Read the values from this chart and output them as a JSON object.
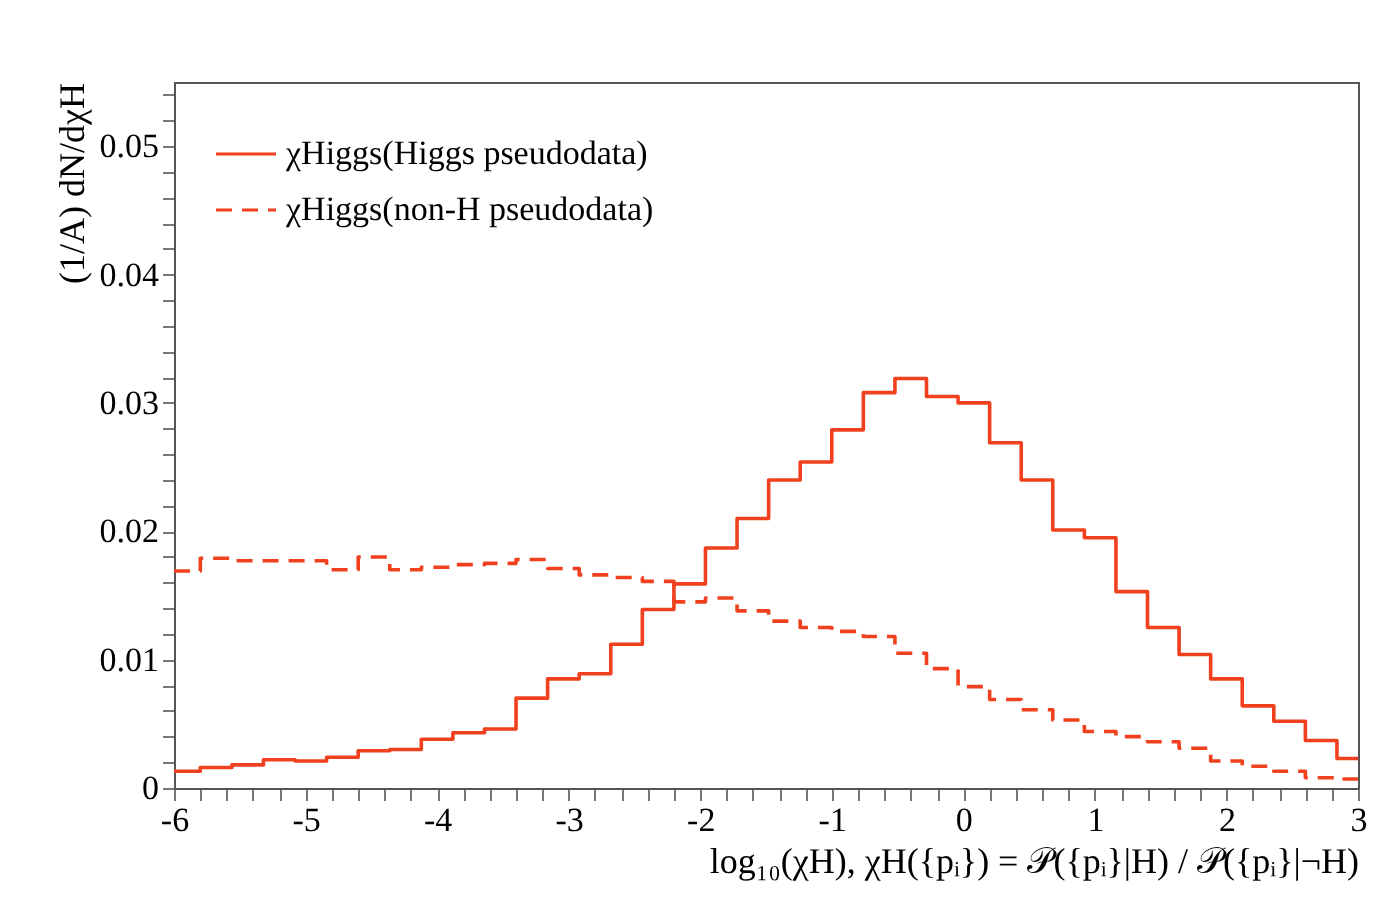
{
  "chart_data": {
    "type": "step",
    "xlabel": "log₁₀(χH),  χH({pᵢ}) = 𝒫({pᵢ}|H) / 𝒫({pᵢ}|¬H)",
    "ylabel": "(1/A) dN/dχH",
    "x": [
      -6,
      -5.8,
      -5.56,
      -5.32,
      -5.08,
      -4.84,
      -4.6,
      -4.36,
      -4.12,
      -3.88,
      -3.64,
      -3.4,
      -3.16,
      -2.92,
      -2.68,
      -2.44,
      -2.2,
      -1.96,
      -1.72,
      -1.48,
      -1.24,
      -1.0,
      -0.76,
      -0.52,
      -0.28,
      -0.04,
      0.2,
      0.44,
      0.68,
      0.92,
      1.16,
      1.4,
      1.64,
      1.88,
      2.12,
      2.36,
      2.6,
      2.84,
      3
    ],
    "series": [
      {
        "name": "χHiggs(Higgs pseudodata)",
        "color": "#f0401e",
        "line_style": "solid",
        "values": [
          0.0013,
          0.0016,
          0.0018,
          0.0022,
          0.0021,
          0.0024,
          0.0029,
          0.003,
          0.0038,
          0.0043,
          0.0046,
          0.007,
          0.0085,
          0.0089,
          0.0112,
          0.0139,
          0.0159,
          0.0187,
          0.021,
          0.024,
          0.0254,
          0.0279,
          0.0308,
          0.0319,
          0.0305,
          0.03,
          0.0269,
          0.024,
          0.0201,
          0.0195,
          0.0153,
          0.0125,
          0.0104,
          0.0085,
          0.0064,
          0.0052,
          0.0037,
          0.0023,
          0.0023
        ]
      },
      {
        "name": "χHiggs(non-H pseudodata)",
        "color": "#f0401e",
        "line_style": "dashed",
        "values": [
          0.0169,
          0.0179,
          0.0177,
          0.0177,
          0.0177,
          0.017,
          0.018,
          0.017,
          0.0172,
          0.0174,
          0.0175,
          0.0178,
          0.0171,
          0.0166,
          0.0164,
          0.0161,
          0.0145,
          0.0148,
          0.0138,
          0.013,
          0.0125,
          0.0122,
          0.0118,
          0.0105,
          0.0093,
          0.0079,
          0.0069,
          0.0061,
          0.0053,
          0.0044,
          0.004,
          0.0036,
          0.0031,
          0.0021,
          0.0017,
          0.0013,
          0.0008,
          0.0007,
          0.0007
        ]
      }
    ],
    "xlim": [
      -6,
      3
    ],
    "xticks": [
      -6,
      {
        "value": -5.8,
        "label": null
      },
      {
        "value": -5.6,
        "label": null
      },
      {
        "value": -5.4,
        "label": null
      },
      {
        "value": -5.2,
        "label": null
      },
      -5,
      {
        "value": -4.8,
        "label": null
      },
      {
        "value": -4.6,
        "label": null
      },
      {
        "value": -4.4,
        "label": null
      },
      {
        "value": -4.2,
        "label": null
      },
      -4,
      {
        "value": -3.8,
        "label": null
      },
      {
        "value": -3.6,
        "label": null
      },
      {
        "value": -3.4,
        "label": null
      },
      {
        "value": -3.2,
        "label": null
      },
      -3,
      {
        "value": -2.8,
        "label": null
      },
      {
        "value": -2.6,
        "label": null
      },
      {
        "value": -2.4,
        "label": null
      },
      {
        "value": -2.2,
        "label": null
      },
      -2,
      {
        "value": -1.8,
        "label": null
      },
      {
        "value": -1.6,
        "label": null
      },
      {
        "value": -1.4,
        "label": null
      },
      {
        "value": -1.2,
        "label": null
      },
      -1,
      {
        "value": -0.8,
        "label": null
      },
      {
        "value": -0.6,
        "label": null
      },
      {
        "value": -0.4,
        "label": null
      },
      {
        "value": -0.2,
        "label": null
      },
      0,
      {
        "value": 0.2,
        "label": null
      },
      {
        "value": 0.4,
        "label": null
      },
      {
        "value": 0.6,
        "label": null
      },
      {
        "value": 0.8,
        "label": null
      },
      1,
      {
        "value": 1.2,
        "label": null
      },
      {
        "value": 1.4,
        "label": null
      },
      {
        "value": 1.6,
        "label": null
      },
      {
        "value": 1.8,
        "label": null
      },
      2,
      {
        "value": 2.2,
        "label": null
      },
      {
        "value": 2.4,
        "label": null
      },
      {
        "value": 2.6,
        "label": null
      },
      {
        "value": 2.8,
        "label": null
      },
      3
    ],
    "ylim": [
      0,
      0.055
    ],
    "yticks": [
      0,
      {
        "value": 0.002,
        "label": null
      },
      {
        "value": 0.004,
        "label": null
      },
      {
        "value": 0.006,
        "label": null
      },
      {
        "value": 0.008,
        "label": null
      },
      0.01,
      {
        "value": 0.012,
        "label": null
      },
      {
        "value": 0.014,
        "label": null
      },
      {
        "value": 0.016,
        "label": null
      },
      {
        "value": 0.018,
        "label": null
      },
      0.02,
      {
        "value": 0.022,
        "label": null
      },
      {
        "value": 0.024,
        "label": null
      },
      {
        "value": 0.026,
        "label": null
      },
      {
        "value": 0.028,
        "label": null
      },
      0.03,
      {
        "value": 0.032,
        "label": null
      },
      {
        "value": 0.034,
        "label": null
      },
      {
        "value": 0.036,
        "label": null
      },
      {
        "value": 0.038,
        "label": null
      },
      0.04,
      {
        "value": 0.042,
        "label": null
      },
      {
        "value": 0.044,
        "label": null
      },
      {
        "value": 0.046,
        "label": null
      },
      {
        "value": 0.048,
        "label": null
      },
      0.05,
      {
        "value": 0.052,
        "label": null
      },
      {
        "value": 0.054,
        "label": null
      }
    ],
    "grid": false,
    "legend": "top left"
  }
}
